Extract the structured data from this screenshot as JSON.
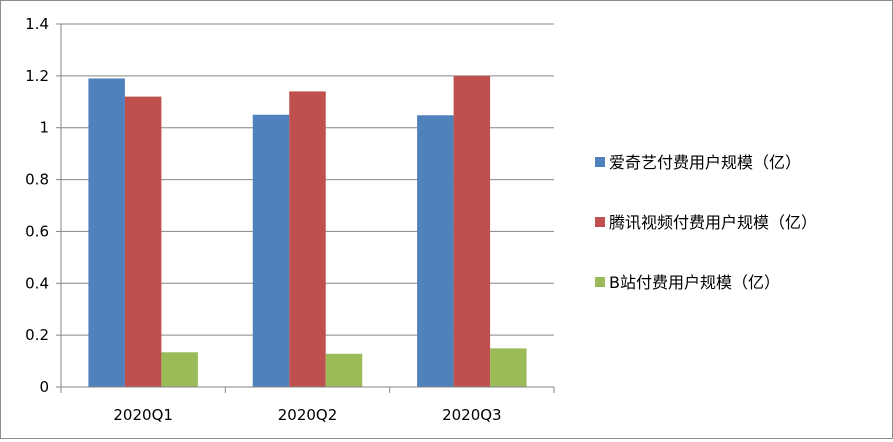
{
  "chart_data": {
    "type": "bar",
    "categories": [
      "2020Q1",
      "2020Q2",
      "2020Q3"
    ],
    "series": [
      {
        "name": "爱奇艺付费用户规模（亿）",
        "color": "#4f81bd",
        "values": [
          1.19,
          1.05,
          1.048
        ]
      },
      {
        "name": "腾讯视频付费用户规模（亿）",
        "color": "#c0504d",
        "values": [
          1.12,
          1.14,
          1.2
        ]
      },
      {
        "name": "B站付费用户规模（亿）",
        "color": "#9bbb59",
        "values": [
          0.134,
          0.128,
          0.149
        ]
      }
    ],
    "y_ticks": [
      "0",
      "0.2",
      "0.4",
      "0.6",
      "0.8",
      "1",
      "1.2",
      "1.4"
    ],
    "ylim": [
      0,
      1.4
    ],
    "grid": true,
    "legend_position": "right"
  }
}
